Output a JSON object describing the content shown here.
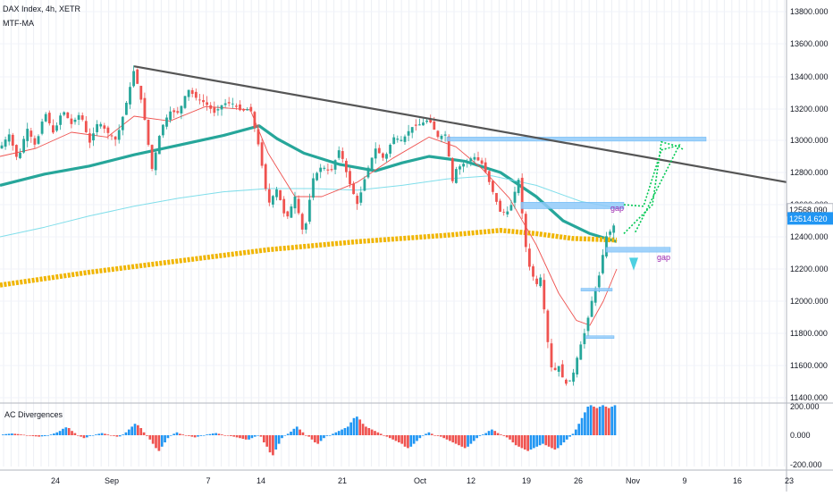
{
  "header": {
    "symbol": "DAX Index, 4h, XETR",
    "indicator": "MTF-MA",
    "sub_title": "AC Divergences"
  },
  "chart_data": [
    {
      "type": "candlestick",
      "title": "DAX Index, 4h, XETR",
      "ylim": [
        11380,
        13850
      ],
      "y_ticks": [
        "13800.000",
        "13600.000",
        "13400.000",
        "13200.000",
        "13000.000",
        "12800.000",
        "12600.000",
        "12400.000",
        "12200.000",
        "12000.000",
        "11800.000",
        "11600.000",
        "11400.000"
      ],
      "x_ticks": [
        "24",
        "Sep",
        "7",
        "14",
        "21",
        "Oct",
        "12",
        "19",
        "26",
        "Nov",
        "9",
        "16",
        "23"
      ],
      "price_labels": [
        {
          "text": "12568.090",
          "value": 12568.09
        },
        {
          "text": "12514.620",
          "value": 12514.62
        }
      ],
      "annotations": [
        "gap",
        "gap"
      ],
      "close_path": [
        [
          0,
          12950
        ],
        [
          10,
          13040
        ],
        [
          20,
          12870
        ],
        [
          30,
          13080
        ],
        [
          40,
          12960
        ],
        [
          50,
          13180
        ],
        [
          60,
          13040
        ],
        [
          70,
          13190
        ],
        [
          80,
          13100
        ],
        [
          90,
          13170
        ],
        [
          100,
          12980
        ],
        [
          110,
          13120
        ],
        [
          120,
          13050
        ],
        [
          130,
          13000
        ],
        [
          140,
          13200
        ],
        [
          150,
          13440
        ],
        [
          160,
          13200
        ],
        [
          170,
          12820
        ],
        [
          180,
          13070
        ],
        [
          190,
          13180
        ],
        [
          200,
          13170
        ],
        [
          210,
          13320
        ],
        [
          220,
          13260
        ],
        [
          230,
          13230
        ],
        [
          240,
          13170
        ],
        [
          250,
          13230
        ],
        [
          260,
          13230
        ],
        [
          270,
          13180
        ],
        [
          280,
          13200
        ],
        [
          290,
          12950
        ],
        [
          300,
          12600
        ],
        [
          310,
          12700
        ],
        [
          320,
          12500
        ],
        [
          330,
          12650
        ],
        [
          340,
          12400
        ],
        [
          350,
          12760
        ],
        [
          360,
          12840
        ],
        [
          370,
          12800
        ],
        [
          380,
          12950
        ],
        [
          390,
          12750
        ],
        [
          400,
          12600
        ],
        [
          410,
          12800
        ],
        [
          420,
          12950
        ],
        [
          430,
          12880
        ],
        [
          440,
          13020
        ],
        [
          450,
          13000
        ],
        [
          460,
          13080
        ],
        [
          470,
          13100
        ],
        [
          480,
          13130
        ],
        [
          490,
          13020
        ],
        [
          500,
          13040
        ],
        [
          505,
          12720
        ],
        [
          510,
          12820
        ],
        [
          520,
          12860
        ],
        [
          530,
          12900
        ],
        [
          540,
          12850
        ],
        [
          550,
          12700
        ],
        [
          560,
          12550
        ],
        [
          570,
          12560
        ],
        [
          580,
          12760
        ],
        [
          590,
          12250
        ],
        [
          600,
          12100
        ],
        [
          605,
          12150
        ],
        [
          612,
          11780
        ],
        [
          618,
          11550
        ],
        [
          625,
          11600
        ],
        [
          632,
          11480
        ],
        [
          640,
          11520
        ],
        [
          648,
          11700
        ],
        [
          655,
          11820
        ],
        [
          662,
          12000
        ],
        [
          670,
          12150
        ],
        [
          678,
          12400
        ],
        [
          685,
          12450
        ],
        [
          690,
          12510
        ]
      ],
      "trendline": {
        "from": [
          150,
          13460
        ],
        "to": [
          880,
          12740
        ]
      },
      "resistance_zones": [
        {
          "x": [
            500,
            790
          ],
          "y": [
            12995,
            13020
          ]
        },
        {
          "x": [
            583,
            698
          ],
          "y": [
            12575,
            12615
          ]
        },
        {
          "x": [
            678,
            750
          ],
          "y": [
            12305,
            12335
          ]
        },
        {
          "x": [
            650,
            685
          ],
          "y": [
            12070,
            12080
          ]
        },
        {
          "x": [
            655,
            687
          ],
          "y": [
            11775,
            11785
          ]
        }
      ],
      "series": [
        {
          "name": "",
          "color": "#26a69a",
          "values": [
            [
              0,
              12720
            ],
            [
              50,
              12790
            ],
            [
              100,
              12840
            ],
            [
              150,
              12910
            ],
            [
              200,
              12970
            ],
            [
              250,
              13030
            ],
            [
              290,
              13090
            ],
            [
              310,
              13010
            ],
            [
              340,
              12920
            ],
            [
              380,
              12850
            ],
            [
              420,
              12810
            ],
            [
              450,
              12860
            ],
            [
              480,
              12900
            ],
            [
              520,
              12870
            ],
            [
              560,
              12800
            ],
            [
              600,
              12650
            ],
            [
              630,
              12500
            ],
            [
              660,
              12420
            ],
            [
              690,
              12370
            ]
          ]
        },
        {
          "name": "",
          "color": "#f0b500",
          "values": [
            [
              0,
              12100
            ],
            [
              100,
              12180
            ],
            [
              200,
              12250
            ],
            [
              300,
              12320
            ],
            [
              400,
              12370
            ],
            [
              500,
              12410
            ],
            [
              560,
              12440
            ],
            [
              600,
              12420
            ],
            [
              640,
              12390
            ],
            [
              690,
              12380
            ]
          ]
        },
        {
          "name": "",
          "color": "#80deea",
          "values": [
            [
              0,
              12400
            ],
            [
              50,
              12460
            ],
            [
              100,
              12530
            ],
            [
              150,
              12590
            ],
            [
              200,
              12640
            ],
            [
              250,
              12680
            ],
            [
              300,
              12700
            ],
            [
              350,
              12700
            ],
            [
              400,
              12690
            ],
            [
              450,
              12720
            ],
            [
              500,
              12760
            ],
            [
              550,
              12780
            ],
            [
              600,
              12720
            ],
            [
              650,
              12620
            ],
            [
              690,
              12580
            ]
          ]
        },
        {
          "name": "",
          "color": "#ef5350",
          "values": [
            [
              0,
              12900
            ],
            [
              40,
              12950
            ],
            [
              80,
              13050
            ],
            [
              120,
              13020
            ],
            [
              150,
              13150
            ],
            [
              190,
              13120
            ],
            [
              230,
              13210
            ],
            [
              280,
              13190
            ],
            [
              300,
              12920
            ],
            [
              330,
              12650
            ],
            [
              360,
              12650
            ],
            [
              400,
              12740
            ],
            [
              440,
              12890
            ],
            [
              480,
              13020
            ],
            [
              510,
              12960
            ],
            [
              540,
              12820
            ],
            [
              570,
              12640
            ],
            [
              600,
              12350
            ],
            [
              625,
              12050
            ],
            [
              645,
              11880
            ],
            [
              660,
              11850
            ],
            [
              675,
              12000
            ],
            [
              690,
              12200
            ]
          ]
        }
      ],
      "projection": {
        "color": "#00c853",
        "paths": [
          [
            [
              698,
              12600
            ],
            [
              720,
              12590
            ],
            [
              740,
              12940
            ],
            [
              760,
              12970
            ],
            [
              710,
              12420
            ]
          ],
          [
            [
              698,
              12420
            ],
            [
              730,
              12600
            ],
            [
              740,
              12990
            ],
            [
              760,
              12960
            ],
            [
              765,
              12940
            ]
          ]
        ]
      }
    },
    {
      "type": "bar",
      "title": "AC Divergences",
      "ylim": [
        -220,
        220
      ],
      "y_ticks": [
        "200.000",
        "0.000",
        "-200.000"
      ],
      "up_color": "#2196f3",
      "down_color": "#ef5350",
      "values": [
        5,
        8,
        10,
        12,
        10,
        8,
        5,
        3,
        0,
        -4,
        -6,
        -8,
        -10,
        -8,
        -6,
        -4,
        5,
        12,
        20,
        30,
        45,
        55,
        50,
        30,
        15,
        0,
        -10,
        -20,
        -15,
        -5,
        0,
        5,
        10,
        15,
        10,
        5,
        0,
        -5,
        -10,
        -8,
        5,
        20,
        40,
        60,
        80,
        70,
        50,
        20,
        -5,
        -30,
        -60,
        -90,
        -110,
        -80,
        -50,
        -20,
        0,
        10,
        20,
        10,
        5,
        0,
        -5,
        -10,
        -15,
        -10,
        -5,
        0,
        5,
        8,
        12,
        15,
        10,
        5,
        0,
        -3,
        -6,
        -10,
        -15,
        -20,
        -25,
        -30,
        -30,
        -20,
        -10,
        0,
        -10,
        -50,
        -80,
        -120,
        -140,
        -100,
        -60,
        -20,
        0,
        10,
        25,
        45,
        60,
        40,
        20,
        0,
        -10,
        -30,
        -50,
        -60,
        -40,
        -20,
        -5,
        0,
        10,
        20,
        30,
        40,
        50,
        60,
        90,
        120,
        130,
        110,
        80,
        60,
        50,
        40,
        30,
        20,
        10,
        0,
        -10,
        -20,
        -30,
        -40,
        -50,
        -60,
        -80,
        -90,
        -80,
        -60,
        -40,
        -20,
        0,
        10,
        20,
        10,
        0,
        -5,
        -10,
        -20,
        -30,
        -40,
        -50,
        -60,
        -70,
        -80,
        -90,
        -80,
        -60,
        -40,
        -20,
        -5,
        5,
        15,
        30,
        40,
        30,
        15,
        5,
        -5,
        -15,
        -30,
        -50,
        -70,
        -80,
        -90,
        -100,
        -110,
        -100,
        -90,
        -80,
        -70,
        -60,
        -70,
        -80,
        -90,
        -100,
        -90,
        -70,
        -50,
        -30,
        -10,
        10,
        40,
        80,
        120,
        160,
        200,
        210,
        200,
        190,
        200,
        210,
        200,
        190,
        200,
        210
      ]
    }
  ]
}
